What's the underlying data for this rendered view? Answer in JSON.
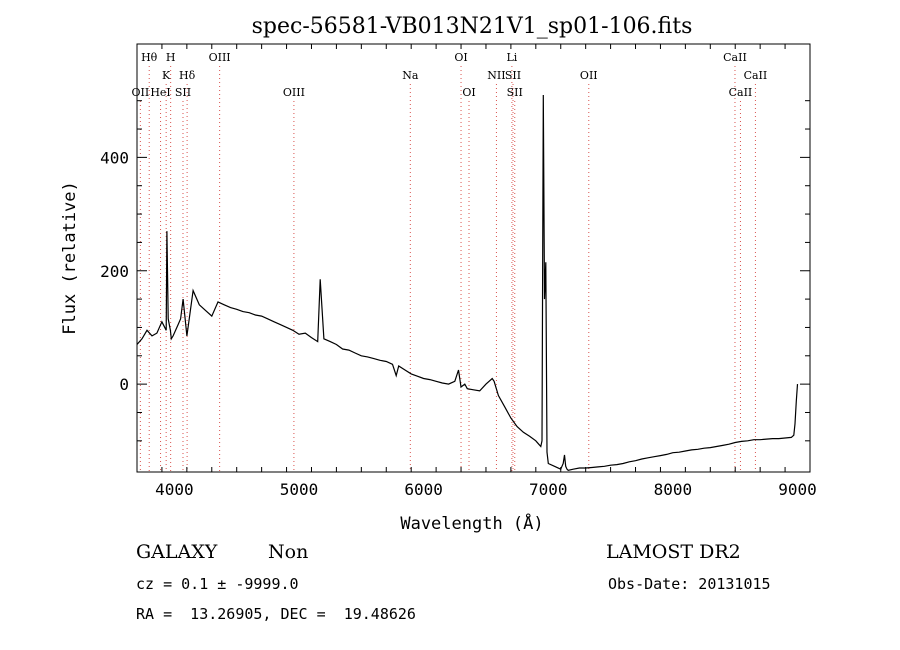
{
  "chart_data": {
    "type": "line",
    "title": "spec-56581-VB013N21V1_sp01-106.fits",
    "xlabel": "Wavelength (Å)",
    "ylabel": "Flux (relative)",
    "xlim": [
      3700,
      9100
    ],
    "ylim": [
      -155,
      600
    ],
    "xticks": [
      4000,
      5000,
      6000,
      7000,
      8000,
      9000
    ],
    "yticks": [
      0,
      200,
      400
    ],
    "grid": false,
    "legend": "none",
    "line_color": "#000000",
    "marker_color": "#d9534f",
    "spectrum": {
      "name": "",
      "x": [
        3700,
        3740,
        3780,
        3820,
        3860,
        3900,
        3934,
        3940,
        3950,
        3968,
        3975,
        3990,
        4010,
        4030,
        4050,
        4070,
        4100,
        4150,
        4200,
        4250,
        4300,
        4350,
        4400,
        4450,
        4500,
        4550,
        4600,
        4650,
        4700,
        4750,
        4800,
        4850,
        4900,
        4950,
        5000,
        5050,
        5100,
        5150,
        5170,
        5200,
        5250,
        5300,
        5350,
        5400,
        5450,
        5500,
        5550,
        5600,
        5650,
        5700,
        5750,
        5780,
        5800,
        5850,
        5900,
        5950,
        6000,
        6050,
        6100,
        6150,
        6200,
        6250,
        6280,
        6300,
        6330,
        6350,
        6400,
        6450,
        6500,
        6550,
        6565,
        6600,
        6650,
        6700,
        6750,
        6800,
        6850,
        6900,
        6920,
        6940,
        6950,
        6960,
        6970,
        6980,
        6990,
        7000,
        7050,
        7100,
        7120,
        7130,
        7140,
        7150,
        7160,
        7200,
        7250,
        7300,
        7350,
        7400,
        7450,
        7500,
        7550,
        7600,
        7650,
        7700,
        7750,
        7800,
        7850,
        7900,
        7950,
        8000,
        8050,
        8100,
        8150,
        8200,
        8250,
        8300,
        8350,
        8400,
        8450,
        8500,
        8550,
        8600,
        8650,
        8700,
        8750,
        8800,
        8850,
        8900,
        8950,
        8970,
        8980,
        8990,
        9000
      ],
      "y": [
        70,
        80,
        95,
        85,
        90,
        110,
        95,
        270,
        115,
        95,
        80,
        85,
        95,
        105,
        115,
        150,
        85,
        165,
        140,
        130,
        120,
        145,
        140,
        135,
        132,
        128,
        126,
        122,
        120,
        115,
        110,
        105,
        100,
        95,
        88,
        90,
        82,
        75,
        185,
        80,
        75,
        70,
        62,
        60,
        55,
        50,
        48,
        45,
        42,
        40,
        35,
        15,
        32,
        25,
        18,
        14,
        10,
        8,
        5,
        2,
        0,
        5,
        25,
        -5,
        0,
        -8,
        -10,
        -12,
        0,
        10,
        5,
        -20,
        -40,
        -60,
        -75,
        -85,
        -92,
        -100,
        -105,
        -110,
        -100,
        510,
        150,
        215,
        -120,
        -140,
        -145,
        -150,
        -140,
        -125,
        -145,
        -150,
        -152,
        -150,
        -148,
        -148,
        -147,
        -146,
        -145,
        -143,
        -142,
        -140,
        -137,
        -135,
        -132,
        -130,
        -128,
        -126,
        -124,
        -121,
        -120,
        -118,
        -116,
        -115,
        -113,
        -112,
        -110,
        -108,
        -106,
        -103,
        -101,
        -100,
        -98,
        -98,
        -97,
        -96,
        -96,
        -95,
        -94,
        -90,
        -70,
        -30,
        0
      ]
    },
    "lines": [
      {
        "name": "Hθ",
        "x": 3798,
        "row": 1
      },
      {
        "name": "OII",
        "x": 3727,
        "row": 3
      },
      {
        "name": "H",
        "x": 3970,
        "row": 1
      },
      {
        "name": "K",
        "x": 3934,
        "row": 2
      },
      {
        "name": "Hδ",
        "x": 4102,
        "row": 2
      },
      {
        "name": "HeI",
        "x": 3889,
        "row": 3
      },
      {
        "name": "SII",
        "x": 4069,
        "row": 3
      },
      {
        "name": "OIII",
        "x": 4363,
        "row": 1
      },
      {
        "name": "OIII",
        "x": 4959,
        "row": 3
      },
      {
        "name": "Na",
        "x": 5893,
        "row": 2
      },
      {
        "name": "OI",
        "x": 6300,
        "row": 1
      },
      {
        "name": "OI",
        "x": 6364,
        "row": 3
      },
      {
        "name": "Li",
        "x": 6708,
        "row": 1
      },
      {
        "name": "NII",
        "x": 6584,
        "row": 2
      },
      {
        "name": "SII",
        "x": 6717,
        "row": 2
      },
      {
        "name": "SII",
        "x": 6731,
        "row": 3
      },
      {
        "name": "OII",
        "x": 7325,
        "row": 2
      },
      {
        "name": "CaII",
        "x": 8498,
        "row": 1
      },
      {
        "name": "CaII",
        "x": 8662,
        "row": 2
      },
      {
        "name": "CaII",
        "x": 8542,
        "row": 3
      }
    ]
  },
  "info": {
    "object_class": "GALAXY",
    "subclass": "Non",
    "survey": "LAMOST DR2",
    "cz_line": "cz = 0.1 ± -9999.0",
    "obs_date": "Obs-Date: 20131015",
    "coords": "RA =  13.26905, DEC =  19.48626"
  }
}
